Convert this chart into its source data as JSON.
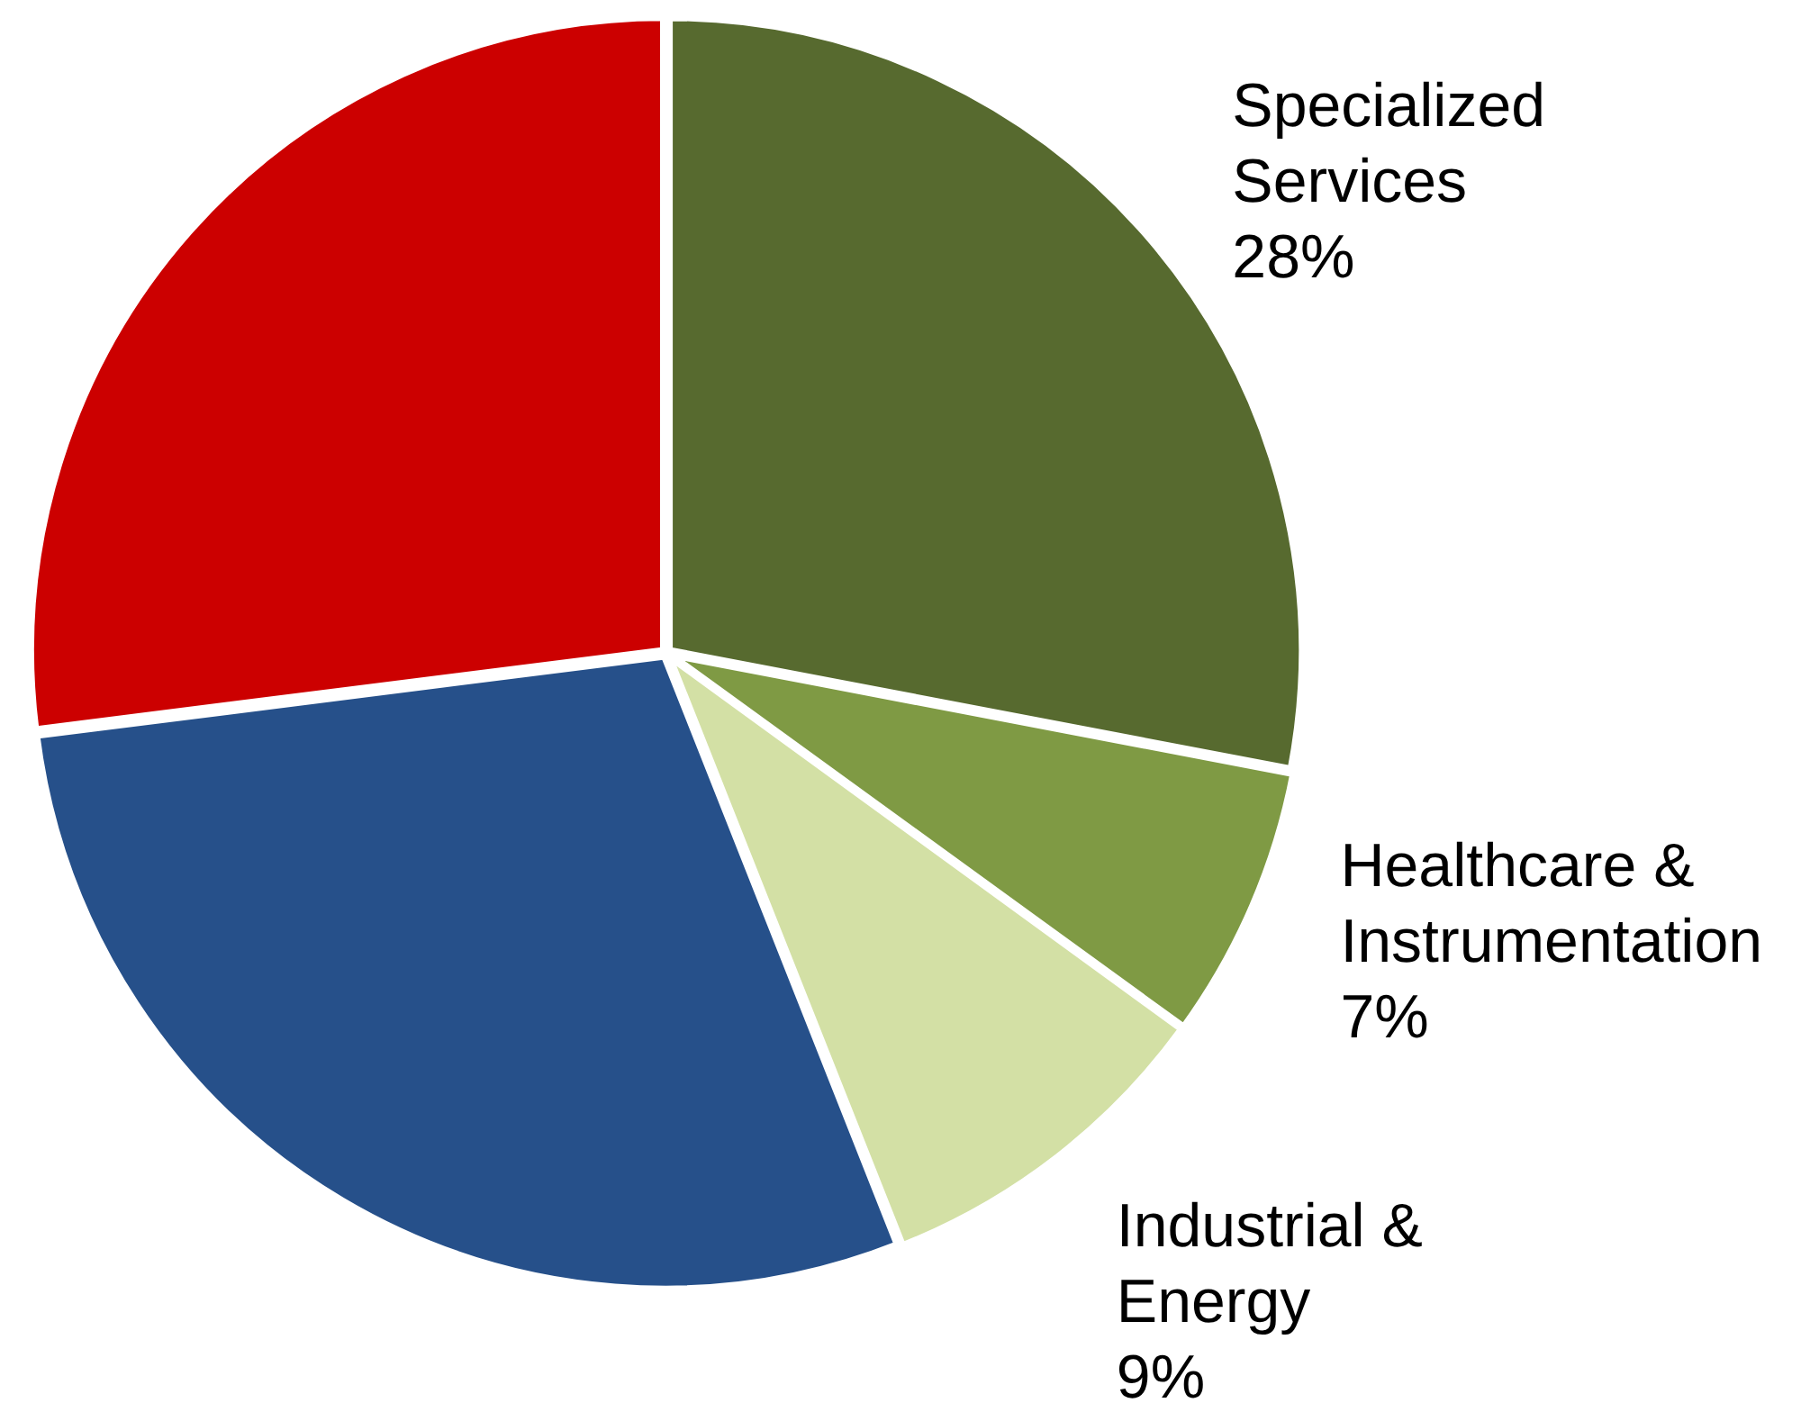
{
  "chart_data": {
    "type": "pie",
    "categories": [
      "Specialized Services",
      "Healthcare & Instrumentation",
      "Industrial & Energy",
      null,
      null
    ],
    "values": [
      28,
      7,
      9,
      29,
      27
    ],
    "colors": [
      "#576a2f",
      "#7f9a44",
      "#d3e0a5",
      "#26508a",
      "#cc0000"
    ],
    "value_labels": [
      "28%",
      "7%",
      "9%",
      null,
      null
    ],
    "legend": false
  }
}
